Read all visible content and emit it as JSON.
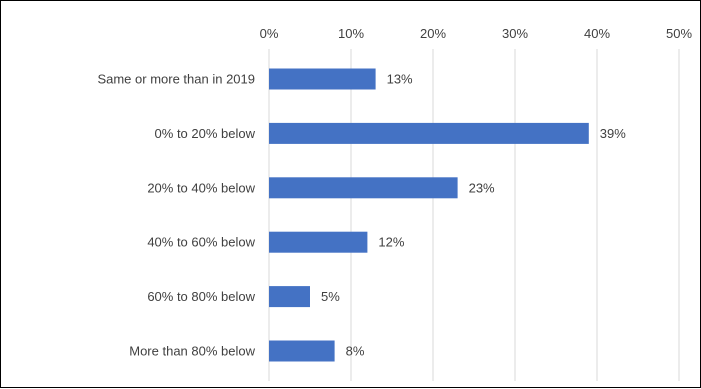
{
  "chart_data": {
    "type": "bar",
    "orientation": "horizontal",
    "categories": [
      "Same or more than in 2019",
      "0% to 20% below",
      "20% to 40% below",
      "40% to 60% below",
      "60% to 80% below",
      "More than 80% below"
    ],
    "values": [
      13,
      39,
      23,
      12,
      5,
      8
    ],
    "data_labels": [
      "13%",
      "39%",
      "23%",
      "12%",
      "5%",
      "8%"
    ],
    "xlim": [
      0,
      50
    ],
    "x_ticks": [
      0,
      10,
      20,
      30,
      40,
      50
    ],
    "x_tick_labels": [
      "0%",
      "10%",
      "20%",
      "30%",
      "40%",
      "50%"
    ],
    "x_axis_position": "top",
    "grid": true,
    "colors": {
      "bar": "#4472C4",
      "grid": "#D9D9D9",
      "text": "#404040"
    }
  }
}
